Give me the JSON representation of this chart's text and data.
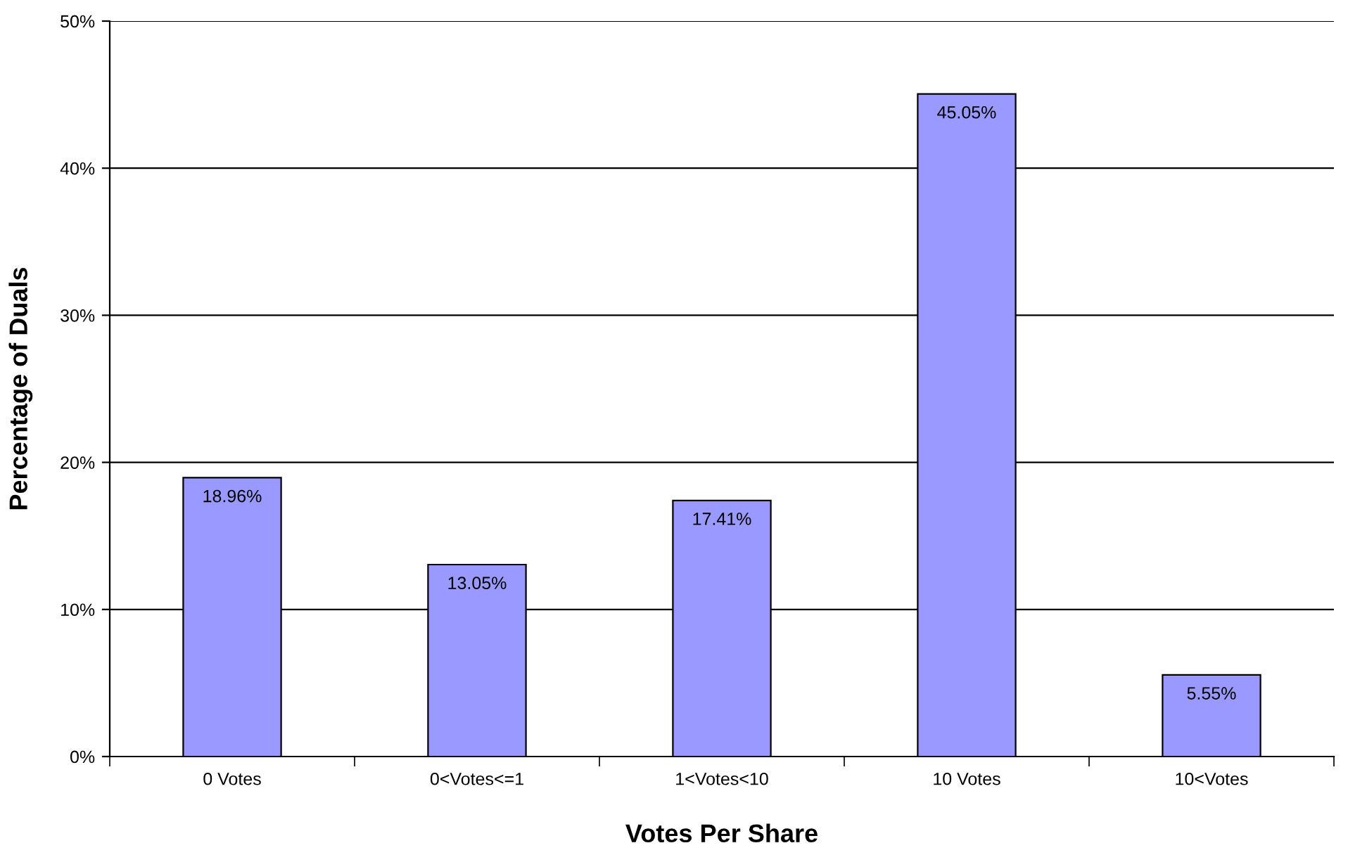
{
  "chart_data": {
    "type": "bar",
    "xlabel": "Votes Per Share",
    "ylabel": "Percentage of Duals",
    "categories": [
      "0 Votes",
      "0<Votes<=1",
      "1<Votes<10",
      "10 Votes",
      "10<Votes"
    ],
    "values": [
      18.96,
      13.05,
      17.41,
      45.05,
      5.55
    ],
    "value_labels": [
      "18.96%",
      "13.05%",
      "17.41%",
      "45.05%",
      "5.55%"
    ],
    "color": "#9999ff",
    "ylim": [
      0,
      50
    ],
    "yticks": [
      {
        "value": 0,
        "label": "0%"
      },
      {
        "value": 10,
        "label": "10%"
      },
      {
        "value": 20,
        "label": "20%"
      },
      {
        "value": 30,
        "label": "30%"
      },
      {
        "value": 40,
        "label": "40%"
      },
      {
        "value": 50,
        "label": "50%"
      }
    ],
    "grid": "y"
  }
}
